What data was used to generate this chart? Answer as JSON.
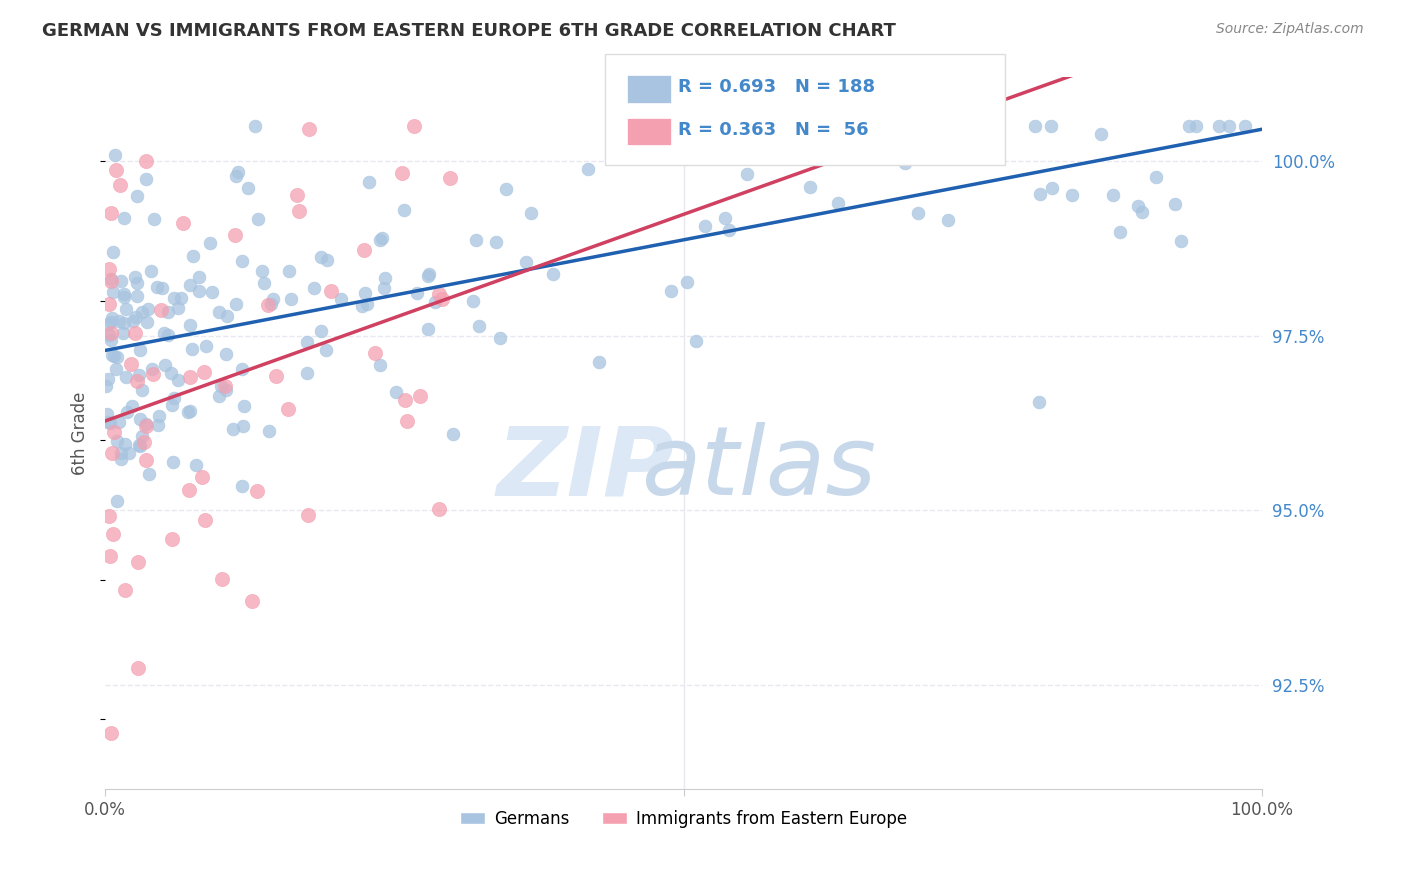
{
  "title": "GERMAN VS IMMIGRANTS FROM EASTERN EUROPE 6TH GRADE CORRELATION CHART",
  "source": "Source: ZipAtlas.com",
  "ylabel": "6th Grade",
  "ytick_vals": [
    92.5,
    95.0,
    97.5,
    100.0
  ],
  "xlim": [
    0.0,
    100.0
  ],
  "ylim": [
    91.0,
    101.2
  ],
  "blue_color": "#a8c4e0",
  "blue_line_color": "#2060b0",
  "pink_color": "#f4a0b0",
  "pink_line_color": "#d04060",
  "blue_R": 0.693,
  "blue_N": 188,
  "pink_R": 0.363,
  "pink_N": 56,
  "watermark_zip_color": "#dce8f5",
  "watermark_atlas_color": "#c8d8eb",
  "background_color": "#ffffff",
  "grid_color": "#e8e8f0",
  "title_color": "#333333",
  "source_color": "#888888",
  "right_axis_color": "#4488cc"
}
